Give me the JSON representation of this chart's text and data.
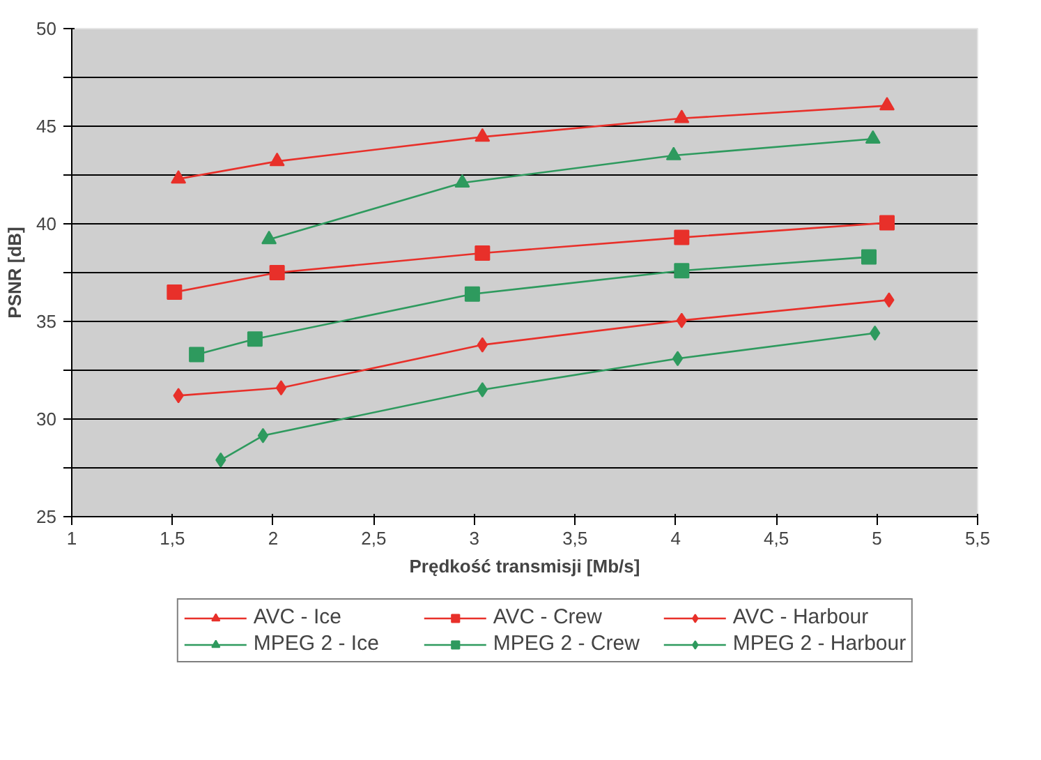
{
  "chart_data": {
    "type": "line",
    "xlabel": "Prędkość transmisji [Mb/s]",
    "ylabel": "PSNR [dB]",
    "xlim": [
      1,
      5.5
    ],
    "xticks": [
      1,
      {
        "value": 1.5,
        "label": "1,5"
      },
      2,
      {
        "value": 2.5,
        "label": "2,5"
      },
      3,
      {
        "value": 3.5,
        "label": "3,5"
      },
      4,
      {
        "value": 4.5,
        "label": "4,5"
      },
      5,
      {
        "value": 5.5,
        "label": "5,5"
      }
    ],
    "ylim": [
      25,
      50
    ],
    "yticks": [
      25,
      {
        "value": 27.5,
        "label": null
      },
      30,
      {
        "value": 32.5,
        "label": null
      },
      35,
      {
        "value": 37.5,
        "label": null
      },
      40,
      {
        "value": 42.5,
        "label": null
      },
      45,
      {
        "value": 47.5,
        "label": null
      },
      50
    ],
    "grid": "y",
    "legend": "bottom",
    "line_style": "solid",
    "series": [
      {
        "name": "AVC - Ice",
        "color": "#e8302a",
        "marker": "triangle",
        "x": [
          1.53,
          2.02,
          3.04,
          4.03,
          5.05
        ],
        "values": [
          42.3,
          43.2,
          44.45,
          45.4,
          46.05
        ]
      },
      {
        "name": "AVC - Crew",
        "color": "#e8302a",
        "marker": "square",
        "x": [
          1.51,
          2.02,
          3.04,
          4.03,
          5.05
        ],
        "values": [
          36.5,
          37.5,
          38.5,
          39.3,
          40.05
        ]
      },
      {
        "name": "AVC - Harbour",
        "color": "#e8302a",
        "marker": "diamond",
        "x": [
          1.53,
          2.04,
          3.04,
          4.03,
          5.06
        ],
        "values": [
          31.2,
          31.6,
          33.8,
          35.05,
          36.1
        ]
      },
      {
        "name": "MPEG 2 - Ice",
        "color": "#2e9a5e",
        "marker": "triangle",
        "x": [
          1.98,
          2.94,
          3.99,
          4.98
        ],
        "values": [
          39.2,
          42.1,
          43.5,
          44.35
        ]
      },
      {
        "name": "MPEG 2 - Crew",
        "color": "#2e9a5e",
        "marker": "square",
        "x": [
          1.62,
          1.91,
          2.99,
          4.03,
          4.96
        ],
        "values": [
          33.3,
          34.1,
          36.4,
          37.6,
          38.3
        ]
      },
      {
        "name": "MPEG 2 - Harbour",
        "color": "#2e9a5e",
        "marker": "diamond",
        "x": [
          1.74,
          1.95,
          3.04,
          4.01,
          4.99
        ],
        "values": [
          27.9,
          29.15,
          31.5,
          33.1,
          34.4
        ]
      }
    ]
  }
}
